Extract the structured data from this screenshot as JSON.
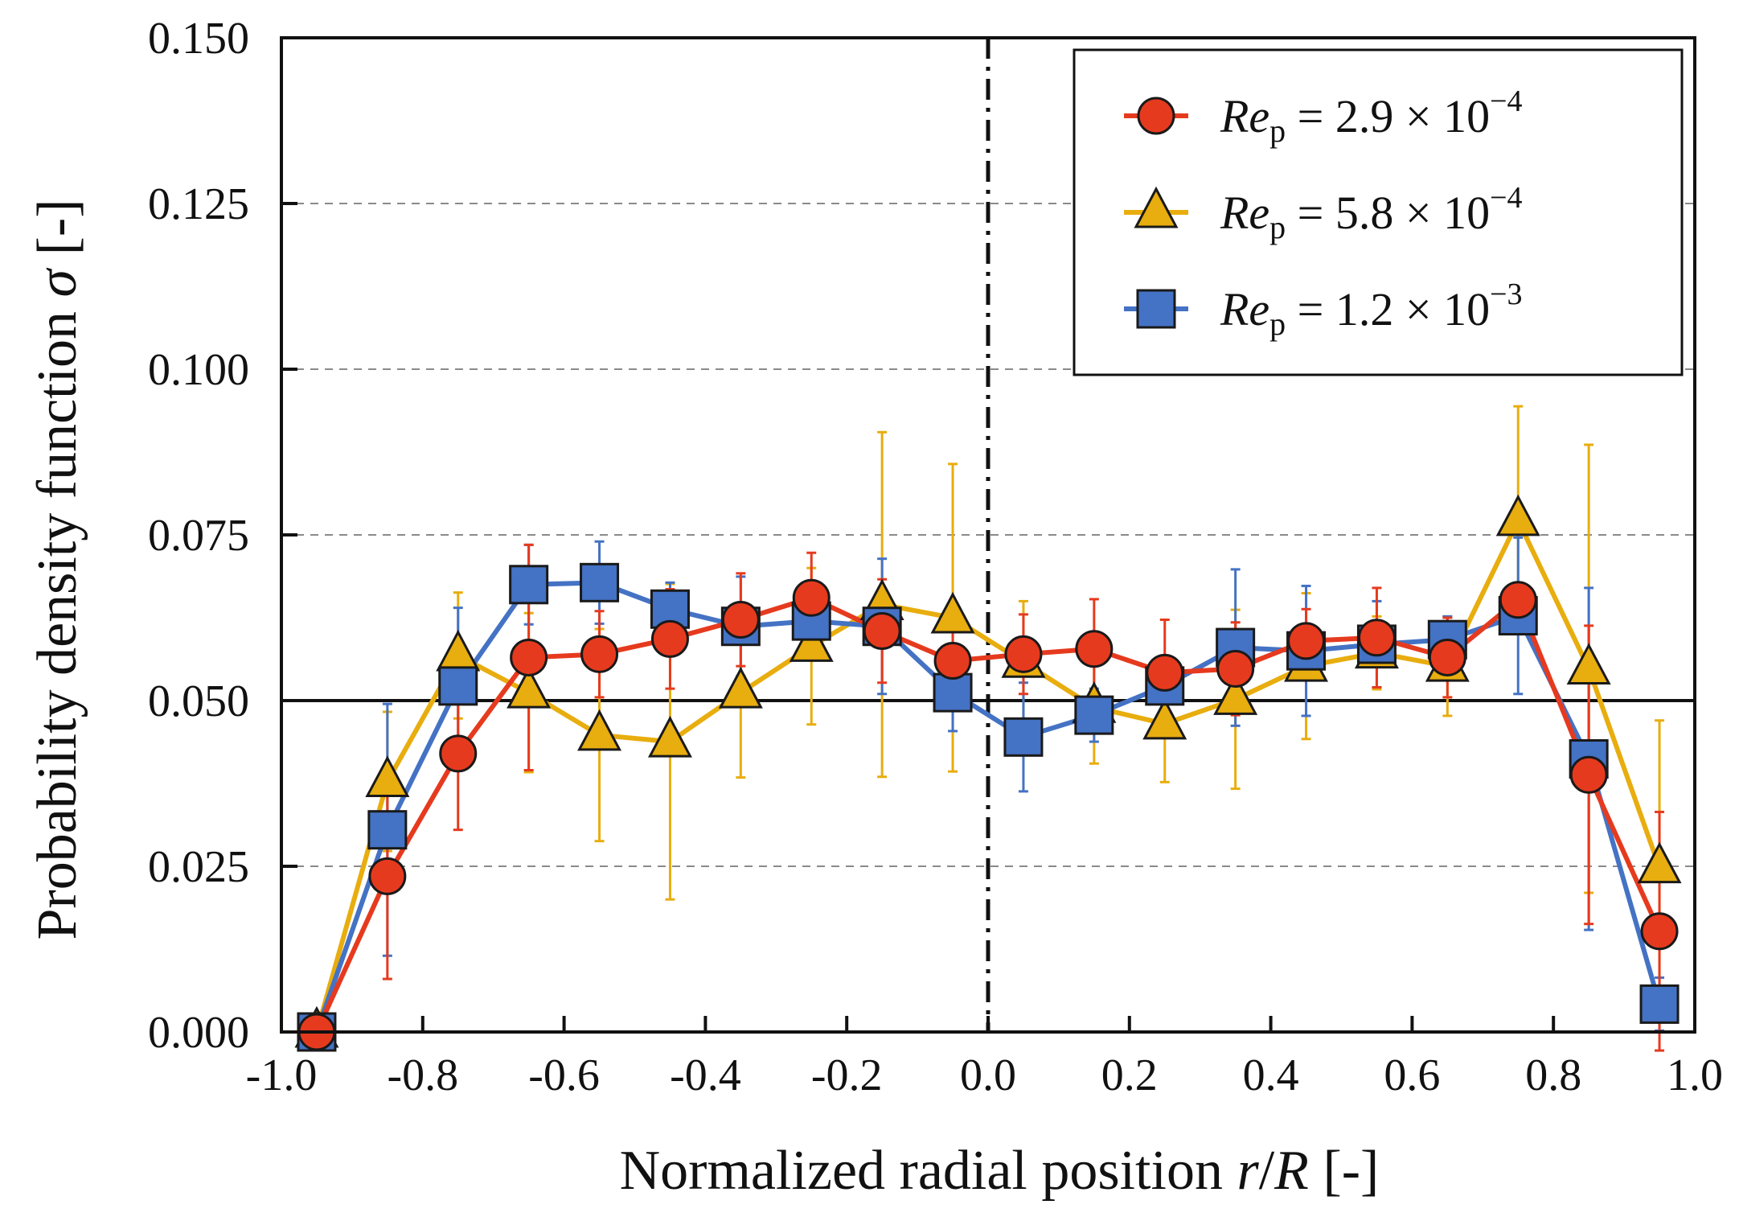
{
  "chart_data": {
    "type": "line",
    "title": "",
    "xlabel": {
      "prefix": "Normalized radial position ",
      "var1": "r",
      "slash": "/",
      "var2": "R",
      "suffix": " [-]"
    },
    "ylabel": {
      "prefix": "Probability density function ",
      "var": "σ",
      "suffix": " [-]"
    },
    "xlim": [
      -1.0,
      1.0
    ],
    "ylim": [
      0.0,
      0.15
    ],
    "xticks": [
      "-1.0",
      "-0.8",
      "-0.6",
      "-0.4",
      "-0.2",
      "0.0",
      "0.2",
      "0.4",
      "0.6",
      "0.8",
      "1.0"
    ],
    "yticks": [
      "0.000",
      "0.025",
      "0.050",
      "0.075",
      "0.100",
      "0.125",
      "0.150"
    ],
    "grid": "horizontal-dashed",
    "reference_line_y": 0.05,
    "center_line_x": 0.0,
    "legend_position": "top-right",
    "x": [
      -0.95,
      -0.85,
      -0.75,
      -0.65,
      -0.55,
      -0.45,
      -0.35,
      -0.25,
      -0.15,
      -0.05,
      0.05,
      0.15,
      0.25,
      0.35,
      0.45,
      0.55,
      0.65,
      0.75,
      0.85,
      0.95
    ],
    "series": [
      {
        "name": "Re_p = 2.9 × 10^-4",
        "label": {
          "base": "Re",
          "sub": "p",
          "eq": " = 2.9 × 10",
          "sup": "−4"
        },
        "color": "#e63a1e",
        "marker": "circle",
        "values": [
          0.0,
          0.0235,
          0.042,
          0.0565,
          0.057,
          0.0593,
          0.0622,
          0.0655,
          0.0605,
          0.056,
          0.057,
          0.0578,
          0.0542,
          0.0548,
          0.059,
          0.0595,
          0.0565,
          0.0652,
          0.0388,
          0.0152
        ],
        "errors": [
          0.0,
          0.0155,
          0.0115,
          0.017,
          0.0065,
          0.0075,
          0.007,
          0.0068,
          0.0078,
          0.0045,
          0.006,
          0.0075,
          0.008,
          0.007,
          0.0048,
          0.0075,
          0.006,
          0.0,
          0.0225,
          0.018
        ]
      },
      {
        "name": "Re_p = 5.8 × 10^-4",
        "label": {
          "base": "Re",
          "sub": "p",
          "eq": " = 5.8 × 10",
          "sup": "−4"
        },
        "color": "#e8ad0e",
        "marker": "triangle",
        "values": [
          0.0,
          0.0378,
          0.0568,
          0.0512,
          0.0448,
          0.0438,
          0.0512,
          0.0582,
          0.0645,
          0.0625,
          0.0558,
          0.049,
          0.0465,
          0.0502,
          0.0552,
          0.0572,
          0.0552,
          0.0772,
          0.0548,
          0.0248
        ],
        "errors": [
          0.0,
          0.0105,
          0.0095,
          0.012,
          0.016,
          0.0238,
          0.0128,
          0.0118,
          0.026,
          0.0232,
          0.0092,
          0.0085,
          0.0088,
          0.0135,
          0.011,
          0.0055,
          0.0075,
          0.0172,
          0.0338,
          0.0222
        ]
      },
      {
        "name": "Re_p = 1.2 × 10^-3",
        "label": {
          "base": "Re",
          "sub": "p",
          "eq": " = 1.2 × 10",
          "sup": "−3"
        },
        "color": "#4472c4",
        "marker": "square",
        "values": [
          0.0,
          0.0305,
          0.0522,
          0.0675,
          0.0678,
          0.0638,
          0.0612,
          0.062,
          0.0612,
          0.0512,
          0.0445,
          0.0478,
          0.0522,
          0.058,
          0.0575,
          0.0585,
          0.0592,
          0.0628,
          0.0412,
          0.0042
        ],
        "errors": [
          0.0,
          0.019,
          0.0118,
          0.006,
          0.0062,
          0.004,
          0.0075,
          0.005,
          0.0102,
          0.0058,
          0.0082,
          0.004,
          0.004,
          0.0118,
          0.0098,
          0.0065,
          0.0035,
          0.0118,
          0.0258,
          0.004
        ]
      }
    ]
  }
}
